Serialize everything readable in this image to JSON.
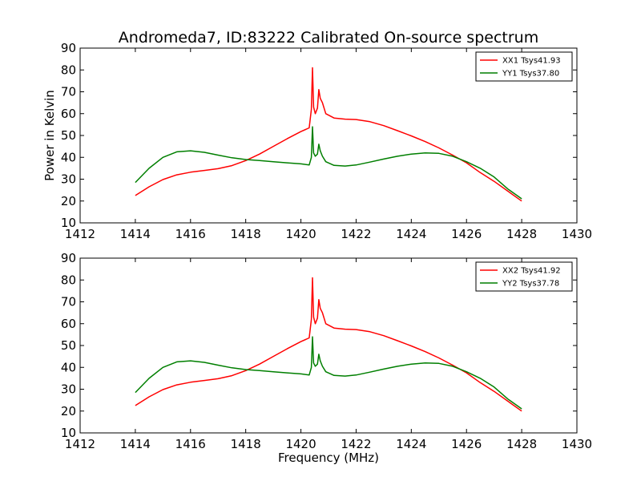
{
  "figure": {
    "title": "Andromeda7, ID:83222 Calibrated On-source spectrum",
    "ylabel": "Power in Kelvin",
    "xlabel": "Frequency (MHz)"
  },
  "colors": {
    "red": "#ff0000",
    "green": "#007f00"
  },
  "chart_data": [
    {
      "type": "line",
      "title": "Andromeda7, ID:83222 Calibrated On-source spectrum",
      "ylabel": "Power in Kelvin",
      "xlabel": "",
      "xlim": [
        1412,
        1430
      ],
      "ylim": [
        10,
        90
      ],
      "xticks": [
        "1412",
        "1414",
        "1416",
        "1418",
        "1420",
        "1422",
        "1424",
        "1426",
        "1428",
        "1430"
      ],
      "yticks": [
        "10",
        "20",
        "30",
        "40",
        "50",
        "60",
        "70",
        "80",
        "90"
      ],
      "grid": false,
      "legend_position": "top-right",
      "series": [
        {
          "name": "XX1 Tsys41.93",
          "color": "#ff0000",
          "x": [
            1414,
            1414.5,
            1415,
            1415.5,
            1416,
            1416.5,
            1417,
            1417.5,
            1418,
            1418.5,
            1419,
            1419.5,
            1420,
            1420.3,
            1420.38,
            1420.42,
            1420.46,
            1420.52,
            1420.6,
            1420.65,
            1420.7,
            1420.78,
            1420.9,
            1421.2,
            1421.6,
            1422,
            1422.5,
            1423,
            1423.5,
            1424,
            1424.5,
            1425,
            1425.5,
            1426,
            1426.5,
            1427,
            1427.5,
            1428
          ],
          "y": [
            22.5,
            26.5,
            29.8,
            32,
            33.2,
            34,
            34.8,
            36.2,
            38.5,
            41.5,
            45,
            48.5,
            51.8,
            53.5,
            62,
            81,
            63,
            60,
            62.5,
            71,
            67,
            65,
            60,
            58,
            57.5,
            57.3,
            56.3,
            54.5,
            52.2,
            49.8,
            47.2,
            44.3,
            41,
            37.5,
            33,
            29,
            24.5,
            20
          ]
        },
        {
          "name": "YY1 Tsys37.80",
          "color": "#007f00",
          "x": [
            1414,
            1414.5,
            1415,
            1415.5,
            1416,
            1416.5,
            1417,
            1417.5,
            1418,
            1418.5,
            1419,
            1419.5,
            1420,
            1420.3,
            1420.38,
            1420.42,
            1420.46,
            1420.52,
            1420.6,
            1420.65,
            1420.7,
            1420.78,
            1420.9,
            1421.2,
            1421.6,
            1422,
            1422.5,
            1423,
            1423.5,
            1424,
            1424.5,
            1425,
            1425.5,
            1426,
            1426.5,
            1427,
            1427.5,
            1428
          ],
          "y": [
            28.5,
            35,
            40,
            42.5,
            43,
            42.3,
            41,
            39.8,
            39,
            38.5,
            38,
            37.5,
            37,
            36.5,
            40,
            54,
            42,
            40.5,
            41.5,
            46,
            43,
            40.5,
            38,
            36.3,
            36,
            36.5,
            37.8,
            39.2,
            40.5,
            41.5,
            42,
            41.8,
            40.5,
            38,
            35,
            31,
            25.5,
            21
          ]
        }
      ]
    },
    {
      "type": "line",
      "title": "",
      "ylabel": "",
      "xlabel": "Frequency (MHz)",
      "xlim": [
        1412,
        1430
      ],
      "ylim": [
        10,
        90
      ],
      "xticks": [
        "1412",
        "1414",
        "1416",
        "1418",
        "1420",
        "1422",
        "1424",
        "1426",
        "1428",
        "1430"
      ],
      "yticks": [
        "10",
        "20",
        "30",
        "40",
        "50",
        "60",
        "70",
        "80",
        "90"
      ],
      "grid": false,
      "legend_position": "top-right",
      "series": [
        {
          "name": "XX2 Tsys41.92",
          "color": "#ff0000",
          "x": [
            1414,
            1414.5,
            1415,
            1415.5,
            1416,
            1416.5,
            1417,
            1417.5,
            1418,
            1418.5,
            1419,
            1419.5,
            1420,
            1420.3,
            1420.38,
            1420.42,
            1420.46,
            1420.52,
            1420.6,
            1420.65,
            1420.7,
            1420.78,
            1420.9,
            1421.2,
            1421.6,
            1422,
            1422.5,
            1423,
            1423.5,
            1424,
            1424.5,
            1425,
            1425.5,
            1426,
            1426.5,
            1427,
            1427.5,
            1428
          ],
          "y": [
            22.5,
            26.5,
            29.8,
            32,
            33.2,
            34,
            34.8,
            36.2,
            38.5,
            41.5,
            45,
            48.5,
            51.8,
            53.5,
            62,
            81,
            63,
            60,
            62.5,
            71,
            67,
            65,
            60,
            58,
            57.5,
            57.3,
            56.3,
            54.5,
            52.2,
            49.8,
            47.2,
            44.3,
            41,
            37.5,
            33,
            29,
            24.5,
            20
          ]
        },
        {
          "name": "YY2 Tsys37.78",
          "color": "#007f00",
          "x": [
            1414,
            1414.5,
            1415,
            1415.5,
            1416,
            1416.5,
            1417,
            1417.5,
            1418,
            1418.5,
            1419,
            1419.5,
            1420,
            1420.3,
            1420.38,
            1420.42,
            1420.46,
            1420.52,
            1420.6,
            1420.65,
            1420.7,
            1420.78,
            1420.9,
            1421.2,
            1421.6,
            1422,
            1422.5,
            1423,
            1423.5,
            1424,
            1424.5,
            1425,
            1425.5,
            1426,
            1426.5,
            1427,
            1427.5,
            1428
          ],
          "y": [
            28.5,
            35,
            40,
            42.5,
            43,
            42.3,
            41,
            39.8,
            39,
            38.5,
            38,
            37.5,
            37,
            36.5,
            40,
            54,
            42,
            40.5,
            41.5,
            46,
            43,
            40.5,
            38,
            36.3,
            36,
            36.5,
            37.8,
            39.2,
            40.5,
            41.5,
            42,
            41.8,
            40.5,
            38,
            35,
            31,
            25.5,
            21
          ]
        }
      ]
    }
  ]
}
